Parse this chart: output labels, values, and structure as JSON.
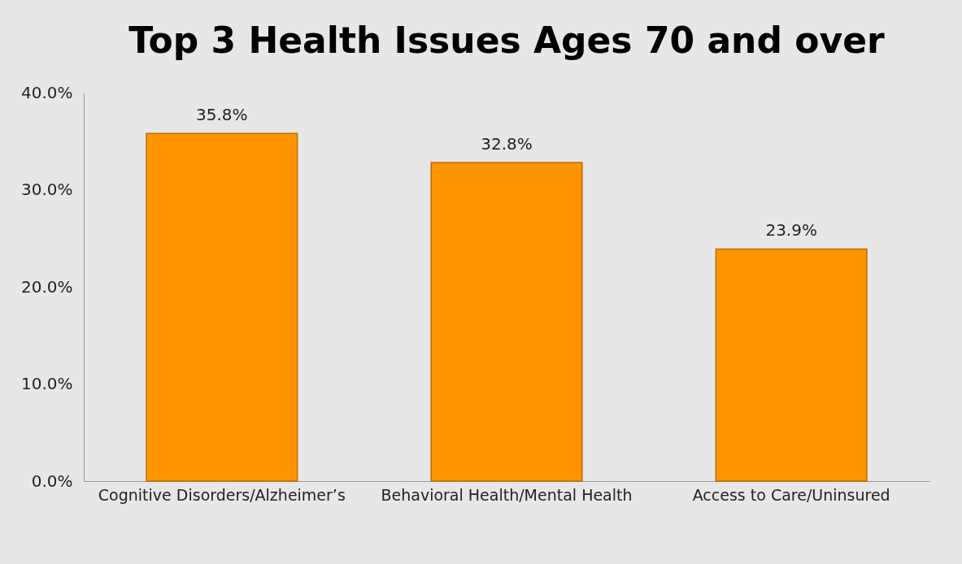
{
  "chart_data": {
    "type": "bar",
    "title": "Top 3 Health Issues Ages 70 and over",
    "categories": [
      "Cognitive Disorders/Alzheimer’s",
      "Behavioral Health/Mental Health",
      "Access to Care/Uninsured"
    ],
    "values": [
      35.8,
      32.8,
      23.9
    ],
    "color": "#ff9400",
    "value_labels": [
      "35.8%",
      "32.8%",
      "23.9%"
    ],
    "ylim": [
      0,
      40
    ],
    "yticks": [
      {
        "value": 0,
        "label": "0.0%"
      },
      {
        "value": 10,
        "label": "10.0%"
      },
      {
        "value": 20,
        "label": "20.0%"
      },
      {
        "value": 30,
        "label": "30.0%"
      },
      {
        "value": 40,
        "label": "40.0%"
      }
    ],
    "grid": false
  }
}
